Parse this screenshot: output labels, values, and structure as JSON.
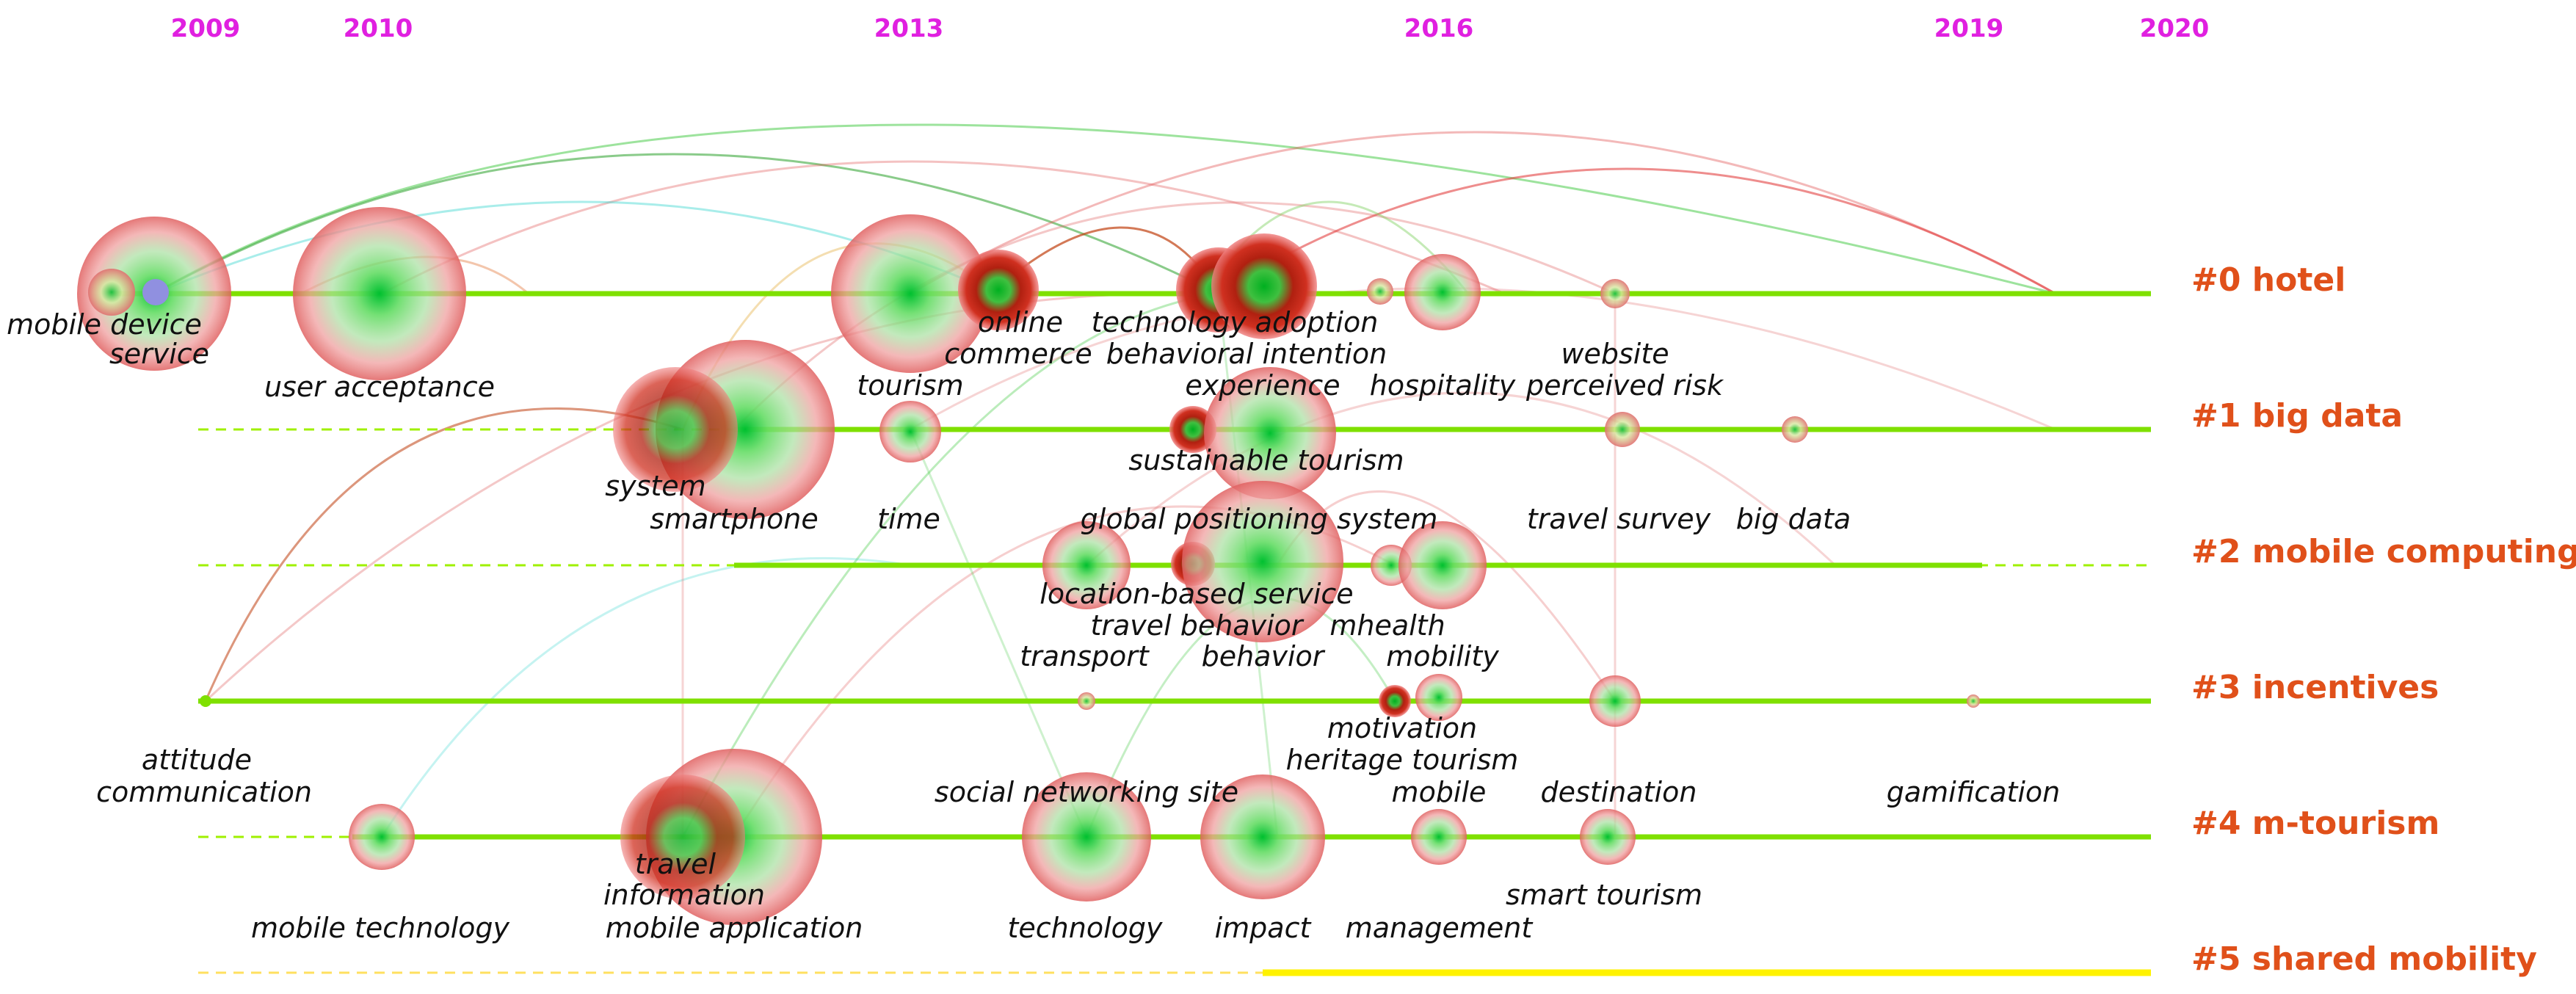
{
  "years": [
    "2009",
    "2010",
    "2013",
    "2016",
    "2019",
    "2020"
  ],
  "clusters": [
    "#0 hotel",
    "#1 big data",
    "#2 mobile computing",
    "#3 incentives",
    "#4 m-tourism",
    "#5 shared mobility"
  ],
  "terms": [
    "mobile device",
    "service",
    "user acceptance",
    "online",
    "commerce",
    "technology adoption",
    "behavioral intention",
    "tourism",
    "experience",
    "hospitality",
    "website",
    "perceived risk",
    "system",
    "smartphone",
    "time",
    "sustainable tourism",
    "global positioning system",
    "travel survey",
    "big data",
    "location-based service",
    "travel behavior",
    "mhealth",
    "transport",
    "behavior",
    "mobility",
    "motivation",
    "heritage tourism",
    "attitude",
    "communication",
    "social networking site",
    "mobile",
    "destination",
    "gamification",
    "travel",
    "information",
    "smart tourism",
    "mobile technology",
    "mobile application",
    "technology",
    "impact",
    "management"
  ],
  "colors": {
    "year": "#e020e0",
    "cluster_label": "#e0501a",
    "timeline_line": "#7fe000",
    "shared_mobility_line": "#fff200",
    "node_outer": "#e84b4b",
    "node_inner": "#30d050"
  }
}
